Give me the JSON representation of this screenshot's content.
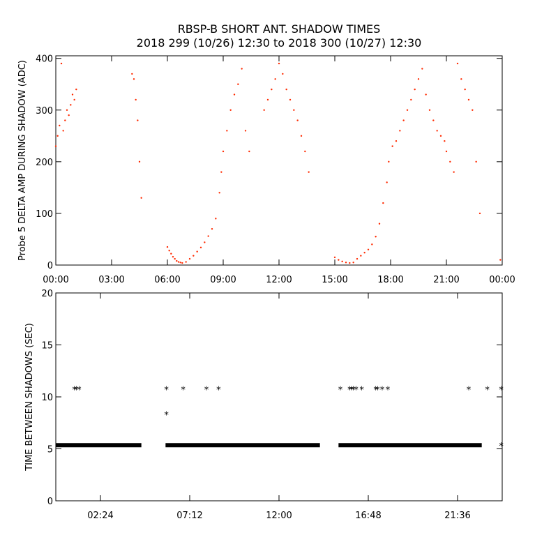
{
  "title": "RBSP-B SHORT ANT. SHADOW TIMES",
  "subtitle": "2018 299 (10/26) 12:30 to 2018 300 (10/27) 12:30",
  "chart_data": [
    {
      "type": "scatter",
      "ylabel": "Probe 5 DELTA AMP DURING SHADOW (ADC)",
      "xlabel": "",
      "xlim": [
        0,
        24
      ],
      "ylim": [
        0,
        405
      ],
      "x_tick_labels": [
        "00:00",
        "03:00",
        "06:00",
        "09:00",
        "12:00",
        "15:00",
        "18:00",
        "21:00",
        "00:00"
      ],
      "x_tick_values": [
        0,
        3,
        6,
        9,
        12,
        15,
        18,
        21,
        24
      ],
      "y_tick_labels": [
        "0",
        "100",
        "200",
        "300",
        "400"
      ],
      "y_tick_values": [
        0,
        100,
        200,
        300,
        400
      ],
      "color": "#ff2a00",
      "series": [
        {
          "x": [
            0.0,
            0.1,
            0.2,
            0.3,
            0.4,
            0.5,
            0.6,
            0.7,
            0.8,
            0.9,
            1.0,
            1.1
          ],
          "y": [
            230,
            250,
            270,
            390,
            260,
            280,
            300,
            290,
            310,
            330,
            320,
            340
          ]
        },
        {
          "x": [
            4.1,
            4.2,
            4.3,
            4.4,
            4.5,
            4.6
          ],
          "y": [
            370,
            360,
            320,
            280,
            200,
            130
          ]
        },
        {
          "x": [
            6.0,
            6.1,
            6.2,
            6.3,
            6.4,
            6.5,
            6.6,
            6.7,
            6.8
          ],
          "y": [
            35,
            28,
            22,
            16,
            12,
            8,
            6,
            5,
            4
          ]
        },
        {
          "x": [
            7.0,
            7.2,
            7.4,
            7.6,
            7.8,
            8.0,
            8.2,
            8.4,
            8.6,
            8.8
          ],
          "y": [
            6,
            12,
            18,
            26,
            34,
            44,
            56,
            70,
            90,
            140
          ]
        },
        {
          "x": [
            8.9,
            9.0,
            9.2,
            9.4,
            9.6,
            9.8,
            10.0,
            10.2,
            10.4
          ],
          "y": [
            180,
            220,
            260,
            300,
            330,
            350,
            380,
            260,
            220
          ]
        },
        {
          "x": [
            11.2,
            11.4,
            11.6,
            11.8,
            12.0,
            12.2,
            12.4,
            12.6,
            12.8,
            13.0,
            13.2,
            13.4,
            13.6
          ],
          "y": [
            300,
            320,
            340,
            360,
            390,
            370,
            340,
            320,
            300,
            280,
            250,
            220,
            180
          ]
        },
        {
          "x": [
            15.0,
            15.2,
            15.4,
            15.6,
            15.8
          ],
          "y": [
            15,
            10,
            7,
            5,
            4
          ]
        },
        {
          "x": [
            16.0,
            16.2,
            16.4,
            16.6,
            16.8,
            17.0,
            17.2,
            17.4,
            17.6,
            17.8
          ],
          "y": [
            5,
            12,
            18,
            24,
            30,
            40,
            55,
            80,
            120,
            160
          ]
        },
        {
          "x": [
            17.9,
            18.1,
            18.3,
            18.5,
            18.7,
            18.9,
            19.1,
            19.3,
            19.5,
            19.7,
            19.9,
            20.1,
            20.3,
            20.5,
            20.7,
            20.9
          ],
          "y": [
            200,
            230,
            240,
            260,
            280,
            300,
            320,
            340,
            360,
            380,
            330,
            300,
            280,
            260,
            250,
            240
          ]
        },
        {
          "x": [
            21.0,
            21.2,
            21.4,
            21.6,
            21.8,
            22.0,
            22.2,
            22.4,
            22.6,
            22.8,
            23.9
          ],
          "y": [
            220,
            200,
            180,
            390,
            360,
            340,
            320,
            300,
            200,
            100,
            10
          ]
        }
      ]
    },
    {
      "type": "scatter",
      "ylabel": "TIME BETWEEN SHADOWS (SEC)",
      "xlabel": "",
      "xlim": [
        0,
        24
      ],
      "ylim": [
        0,
        20
      ],
      "x_tick_labels": [
        "02:24",
        "07:12",
        "12:00",
        "16:48",
        "21:36"
      ],
      "x_tick_values": [
        2.4,
        7.2,
        12.0,
        16.8,
        21.6
      ],
      "y_tick_labels": [
        "0",
        "5",
        "10",
        "15",
        "20"
      ],
      "y_tick_values": [
        0,
        5,
        10,
        15,
        20
      ],
      "marker": "*",
      "color": "#000000",
      "baseline": {
        "y": 5.35,
        "segments": [
          [
            0.0,
            4.6
          ],
          [
            5.9,
            14.2
          ],
          [
            15.2,
            22.9
          ]
        ]
      },
      "points": [
        {
          "x": 1.0,
          "y": 10.7
        },
        {
          "x": 1.1,
          "y": 10.7
        },
        {
          "x": 1.25,
          "y": 10.7
        },
        {
          "x": 5.95,
          "y": 10.7
        },
        {
          "x": 5.95,
          "y": 8.3
        },
        {
          "x": 6.85,
          "y": 10.7
        },
        {
          "x": 8.1,
          "y": 10.7
        },
        {
          "x": 8.75,
          "y": 10.7
        },
        {
          "x": 15.3,
          "y": 10.7
        },
        {
          "x": 15.8,
          "y": 10.7
        },
        {
          "x": 15.9,
          "y": 10.7
        },
        {
          "x": 16.0,
          "y": 10.7
        },
        {
          "x": 16.15,
          "y": 10.7
        },
        {
          "x": 16.45,
          "y": 10.7
        },
        {
          "x": 17.2,
          "y": 10.7
        },
        {
          "x": 17.3,
          "y": 10.7
        },
        {
          "x": 17.55,
          "y": 10.7
        },
        {
          "x": 17.85,
          "y": 10.7
        },
        {
          "x": 22.2,
          "y": 10.7
        },
        {
          "x": 23.2,
          "y": 10.7
        },
        {
          "x": 23.95,
          "y": 10.7
        },
        {
          "x": 23.95,
          "y": 5.3
        }
      ]
    }
  ]
}
